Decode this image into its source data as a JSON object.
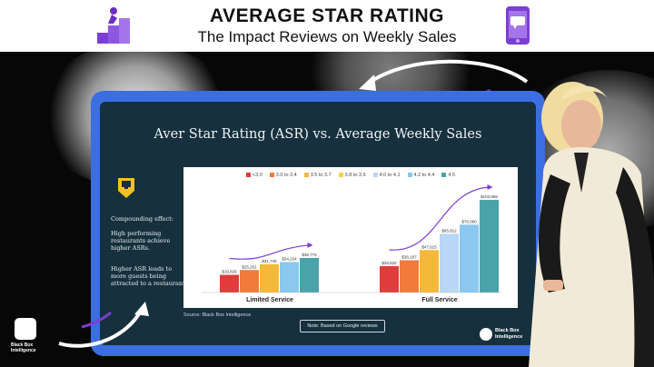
{
  "header": {
    "title": "AVERAGE STAR RATING",
    "subtitle": "The Impact Reviews on Weekly Sales",
    "left_icon": "climbing-stairs-icon",
    "right_icon": "phone-review-icon"
  },
  "slide": {
    "title": "Aver Star Rating (ASR) vs. Average Weekly Sales",
    "side_heading": "Compounding effect:",
    "side_para1": "High performing restaurants achieve higher ASRs.",
    "side_para2": "Higher ASR leads to more guests being attracted to a restaurant.",
    "source": "Source: Black Box Intelligence",
    "note": "Note: Based on Google reviews",
    "logo_text": "Black Box Intelligence",
    "left_logo_text": "Black Box Intelligence"
  },
  "chart_data": {
    "type": "bar",
    "legend": [
      "<3.0",
      "3.0 to 3.4",
      "3.5 to 3.7",
      "3.8 to 3.9",
      "4.0 to 4.1",
      "4.2 to 4.4",
      "4.5"
    ],
    "colors": [
      "#e23b3b",
      "#f07b3a",
      "#f5b83a",
      "#f5d24a",
      "#b8d6f5",
      "#8ac8f0",
      "#4aa3a8"
    ],
    "groups": [
      {
        "name": "Limited Service",
        "bars": [
          {
            "color_index": 0,
            "value_label": "$19,829"
          },
          {
            "color_index": 1,
            "value_label": "$25,201"
          },
          {
            "color_index": 2,
            "value_label": "$31,745"
          },
          {
            "color_index": 5,
            "value_label": "$34,224"
          },
          {
            "color_index": 6,
            "value_label": "$38,775"
          }
        ],
        "values": [
          19829,
          25201,
          31745,
          34224,
          38775
        ]
      },
      {
        "name": "Full Service",
        "bars": [
          {
            "color_index": 0,
            "value_label": "$29,532"
          },
          {
            "color_index": 1,
            "value_label": "$36,187"
          },
          {
            "color_index": 2,
            "value_label": "$47,615"
          },
          {
            "color_index": 4,
            "value_label": "$65,812"
          },
          {
            "color_index": 5,
            "value_label": "$76,090"
          },
          {
            "color_index": 6,
            "value_label": "$103,866"
          }
        ],
        "values": [
          29532,
          36187,
          47615,
          65812,
          76090,
          103866
        ]
      }
    ],
    "ylim": [
      0,
      110000
    ]
  }
}
